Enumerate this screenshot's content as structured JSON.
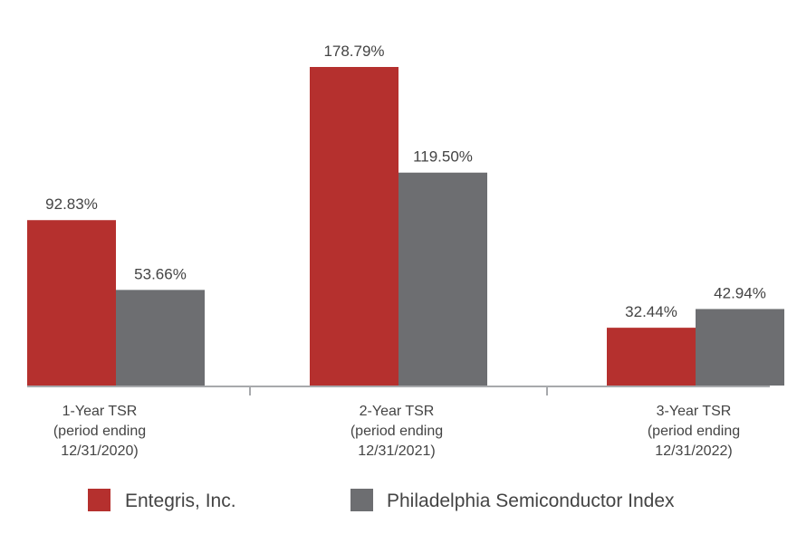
{
  "chart_data": {
    "type": "bar",
    "categories": [
      [
        "1-Year TSR",
        "(period ending",
        "12/31/2020)"
      ],
      [
        "2-Year TSR",
        "(period ending",
        "12/31/2021)"
      ],
      [
        "3-Year TSR",
        "(period ending",
        "12/31/2022)"
      ]
    ],
    "series": [
      {
        "name": "Entegris, Inc.",
        "color": "#B5302E",
        "values": [
          92.83,
          178.79,
          32.44
        ],
        "labels": [
          "92.83%",
          "178.79%",
          "32.44%"
        ]
      },
      {
        "name": "Philadelphia Semiconductor Index",
        "color": "#6D6E71",
        "values": [
          53.66,
          119.5,
          42.94
        ],
        "labels": [
          "53.66%",
          "119.50%",
          "42.94%"
        ]
      }
    ],
    "ylim": [
      0,
      178.79
    ],
    "grid": false,
    "legend_position": "bottom",
    "axis_color": "#A7A9AC"
  }
}
